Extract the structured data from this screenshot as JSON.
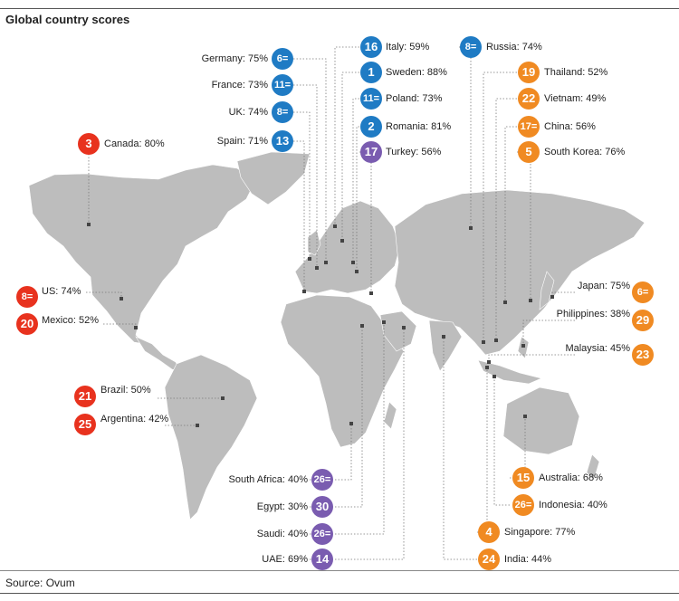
{
  "title": "Global country scores",
  "source": "Source: Ovum",
  "colors": {
    "blue": "#1f7bc4",
    "red": "#e8321e",
    "orange": "#f08a22",
    "purple": "#7a5cb0",
    "land": "#bdbdbd"
  },
  "countries": [
    {
      "name": "Italy: 59%",
      "rank": "16"
    },
    {
      "name": "Russia: 74%",
      "rank": "8="
    },
    {
      "name": "Germany: 75%",
      "rank": "6="
    },
    {
      "name": "Sweden: 88%",
      "rank": "1"
    },
    {
      "name": "Thailand: 52%",
      "rank": "19"
    },
    {
      "name": "France: 73%",
      "rank": "11="
    },
    {
      "name": "Poland: 73%",
      "rank": "11="
    },
    {
      "name": "Vietnam: 49%",
      "rank": "22"
    },
    {
      "name": "UK: 74%",
      "rank": "8="
    },
    {
      "name": "Romania: 81%",
      "rank": "2"
    },
    {
      "name": "China: 56%",
      "rank": "17="
    },
    {
      "name": "Spain: 71%",
      "rank": "13"
    },
    {
      "name": "Turkey: 56%",
      "rank": "17"
    },
    {
      "name": "South Korea: 76%",
      "rank": "5"
    },
    {
      "name": "Canada: 80%",
      "rank": "3"
    },
    {
      "name": "US: 74%",
      "rank": "8="
    },
    {
      "name": "Mexico: 52%",
      "rank": "20"
    },
    {
      "name": "Japan: 75%",
      "rank": "6="
    },
    {
      "name": "Philippines: 38%",
      "rank": "29"
    },
    {
      "name": "Malaysia: 45%",
      "rank": "23"
    },
    {
      "name": "Brazil: 50%",
      "rank": "21"
    },
    {
      "name": "Argentina: 42%",
      "rank": "25"
    },
    {
      "name": "Australia: 68%",
      "rank": "15"
    },
    {
      "name": "South Africa: 40%",
      "rank": "26="
    },
    {
      "name": "Indonesia: 40%",
      "rank": "26="
    },
    {
      "name": "Egypt: 30%",
      "rank": "30"
    },
    {
      "name": "Singapore: 77%",
      "rank": "4"
    },
    {
      "name": "Saudi: 40%",
      "rank": "26="
    },
    {
      "name": "UAE: 69%",
      "rank": "14"
    },
    {
      "name": "India: 44%",
      "rank": "24"
    }
  ]
}
